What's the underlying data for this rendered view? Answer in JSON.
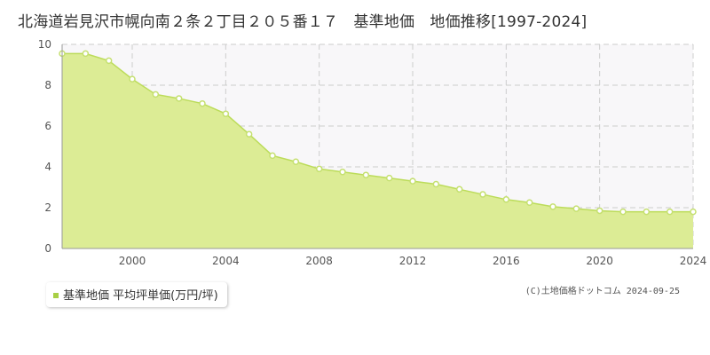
{
  "title": "北海道岩見沢市幌向南２条２丁目２０５番１７　基準地価　地価推移[1997-2024]",
  "legend": {
    "label": "基準地価 平均坪単価(万円/坪)"
  },
  "copyright": "(C)土地価格ドットコム 2024-09-25",
  "colors": {
    "fill": "#dcec95",
    "line": "#bcdc5a",
    "marker": "#c5e070",
    "legend": "#a8cf45",
    "grid": "#cccccc",
    "plot_bg": "#f8f7f9"
  },
  "chart_data": {
    "type": "area",
    "x": [
      1997,
      1998,
      1999,
      2000,
      2001,
      2002,
      2003,
      2004,
      2005,
      2006,
      2007,
      2008,
      2009,
      2010,
      2011,
      2012,
      2013,
      2014,
      2015,
      2016,
      2017,
      2018,
      2019,
      2020,
      2021,
      2022,
      2023,
      2024
    ],
    "series": [
      {
        "name": "基準地価 平均坪単価(万円/坪)",
        "values": [
          9.55,
          9.55,
          9.2,
          8.3,
          7.55,
          7.35,
          7.1,
          6.6,
          5.6,
          4.55,
          4.25,
          3.9,
          3.75,
          3.6,
          3.45,
          3.3,
          3.15,
          2.9,
          2.65,
          2.4,
          2.25,
          2.05,
          1.95,
          1.85,
          1.8,
          1.8,
          1.8,
          1.8
        ]
      }
    ],
    "xticks": [
      "2000",
      "2004",
      "2008",
      "2012",
      "2016",
      "2020",
      "2024"
    ],
    "yticks": [
      "0",
      "2",
      "4",
      "6",
      "8",
      "10"
    ],
    "xlim": [
      1997,
      2024
    ],
    "ylim": [
      0,
      10
    ],
    "grid": true
  }
}
